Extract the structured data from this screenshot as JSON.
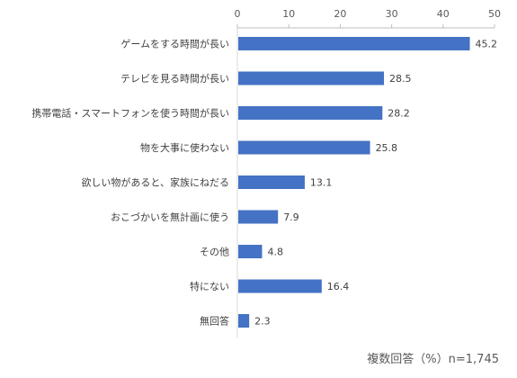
{
  "chart_data": {
    "type": "bar",
    "orientation": "horizontal",
    "categories": [
      "ゲームをする時間が長い",
      "テレビを見る時間が長い",
      "携帯電話・スマートフォンを使う時間が長い",
      "物を大事に使わない",
      "欲しい物があると、家族にねだる",
      "おこづかいを無計画に使う",
      "その他",
      "特にない",
      "無回答"
    ],
    "values": [
      45.2,
      28.5,
      28.2,
      25.8,
      13.1,
      7.9,
      4.8,
      16.4,
      2.3
    ],
    "value_labels": [
      "45.2",
      "28.5",
      "28.2",
      "25.8",
      "13.1",
      "7.9",
      "4.8",
      "16.4",
      "2.3"
    ],
    "xlim": [
      0,
      50
    ],
    "xticks": [
      "0",
      "10",
      "20",
      "30",
      "40",
      "50"
    ],
    "tick_values": [
      0,
      10,
      20,
      30,
      40,
      50
    ],
    "axis_position": "top",
    "grid": false,
    "bar_color": "#4472C4"
  },
  "note": "複数回答（%）n=1,745"
}
